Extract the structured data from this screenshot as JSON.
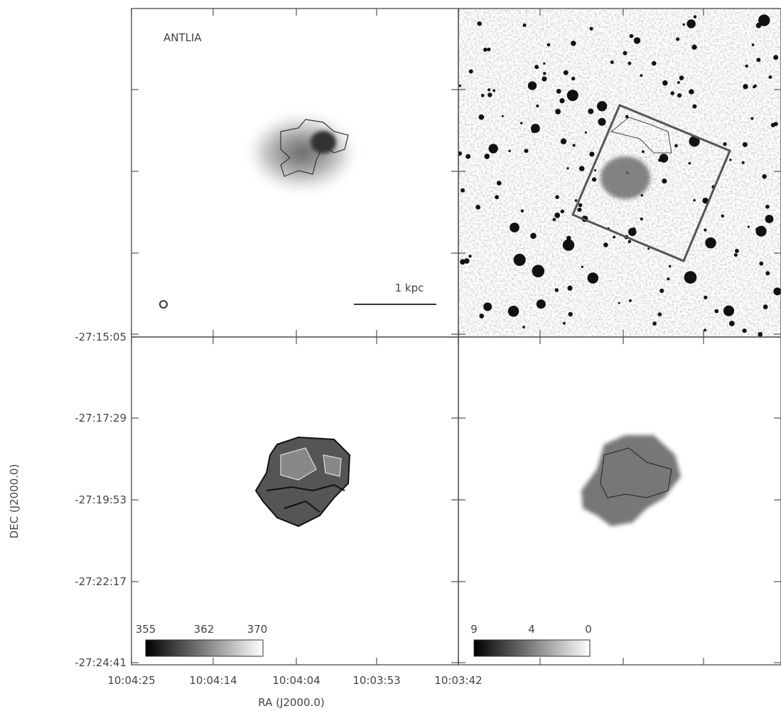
{
  "panels": {
    "label": "ANTLIA",
    "scale_bar": "1 kpc",
    "colorbar_left": [
      "355",
      "362",
      "370"
    ],
    "colorbar_right": [
      "9",
      "4",
      "0"
    ]
  },
  "axes": {
    "y_label": "DEC (J2000.0)",
    "x_label": "RA (J2000.0)",
    "y_ticks": [
      "-27:15:05",
      "-27:17:29",
      "-27:19:53",
      "-27:22:17",
      "-27:24:41"
    ],
    "x_ticks": [
      "10:04:25",
      "10:04:14",
      "10:04:04",
      "10:03:53",
      "10:03:42"
    ]
  }
}
